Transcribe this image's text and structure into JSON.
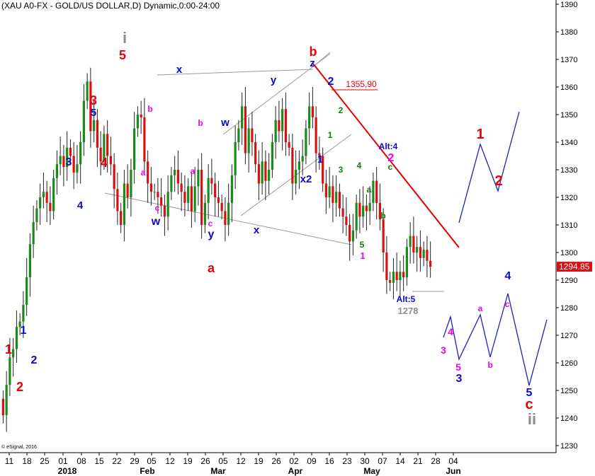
{
  "header": {
    "title": "(XAU A0-FX - GOLD/US DOLLAR,D) Dynamic,0:00-24:00"
  },
  "footer": {
    "copyright": "© eSignal, 2016"
  },
  "colors": {
    "red": "#e8000b",
    "blue": "#0a0ac8",
    "green": "#107a10",
    "magenta": "#ee00ee",
    "gray": "#8c8c8c",
    "candle_up": "#1a8a1a",
    "candle_down": "#d81010",
    "trend": "#e00000",
    "proj": "#1f1fb8"
  },
  "chart_data": {
    "type": "candlestick",
    "title": "(XAU A0-FX - GOLD/US DOLLAR,D) Dynamic,0:00-24:00",
    "ylim": [
      1226,
      1395
    ],
    "yticks": [
      1230,
      1240,
      1250,
      1260,
      1270,
      1280,
      1290,
      1300,
      1310,
      1320,
      1330,
      1340,
      1350,
      1360,
      1370,
      1380,
      1390
    ],
    "last_price": "1294.85",
    "xticks": [
      "11",
      "18",
      "25",
      "01",
      "08",
      "15",
      "22",
      "29",
      "05",
      "12",
      "19",
      "26",
      "05",
      "12",
      "19",
      "26",
      "02",
      "09",
      "16",
      "23",
      "30",
      "07",
      "14",
      "21",
      "28",
      "04"
    ],
    "xmonths": [
      "2018",
      "Feb",
      "Mar",
      "Apr",
      "May",
      "Jun"
    ],
    "closes": [
      1241,
      1252,
      1262,
      1265,
      1273,
      1275,
      1281,
      1291,
      1303,
      1311,
      1316,
      1320,
      1322,
      1318,
      1315,
      1327,
      1332,
      1335,
      1331,
      1338,
      1335,
      1329,
      1332,
      1340,
      1355,
      1362,
      1344,
      1348,
      1338,
      1333,
      1343,
      1335,
      1332,
      1323,
      1315,
      1310,
      1325,
      1320,
      1330,
      1345,
      1350,
      1349,
      1333,
      1325,
      1322,
      1322,
      1320,
      1317,
      1313,
      1322,
      1328,
      1330,
      1325,
      1322,
      1318,
      1324,
      1315,
      1324,
      1330,
      1310,
      1318,
      1327,
      1325,
      1320,
      1318,
      1315,
      1310,
      1318,
      1328,
      1340,
      1345,
      1353,
      1336,
      1345,
      1340,
      1332,
      1325,
      1333,
      1326,
      1330,
      1340,
      1348,
      1344,
      1352,
      1340,
      1338,
      1325,
      1330,
      1333,
      1335,
      1345,
      1353,
      1349,
      1336,
      1335,
      1325,
      1320,
      1324,
      1318,
      1322,
      1316,
      1313,
      1310,
      1304,
      1308,
      1318,
      1313,
      1317,
      1315,
      1318,
      1326,
      1318,
      1312,
      1300,
      1290,
      1289,
      1293,
      1290,
      1293,
      1291,
      1302,
      1306,
      1300,
      1302,
      1298,
      1301,
      1297,
      1294.85
    ],
    "annotations": {
      "prices": [
        "1355,90",
        "1278"
      ],
      "alt": [
        "Alt:4",
        "Alt:5"
      ],
      "waves": [
        {
          "t": "1",
          "c": "red"
        },
        {
          "t": "2",
          "c": "red"
        },
        {
          "t": "1",
          "c": "blue"
        },
        {
          "t": "2",
          "c": "blue"
        },
        {
          "t": "3",
          "c": "blue"
        },
        {
          "t": "4",
          "c": "blue"
        },
        {
          "t": "5",
          "c": "blue"
        },
        {
          "t": "3",
          "c": "red"
        },
        {
          "t": "4",
          "c": "red"
        },
        {
          "t": "5",
          "c": "red"
        },
        {
          "t": "i",
          "c": "gray"
        },
        {
          "t": "a",
          "c": "magenta"
        },
        {
          "t": "b",
          "c": "magenta"
        },
        {
          "t": "c",
          "c": "magenta"
        },
        {
          "t": "w",
          "c": "blue"
        },
        {
          "t": "x",
          "c": "blue"
        },
        {
          "t": "a",
          "c": "magenta"
        },
        {
          "t": "b",
          "c": "magenta"
        },
        {
          "t": "c",
          "c": "magenta"
        },
        {
          "t": "y",
          "c": "blue"
        },
        {
          "t": "a",
          "c": "red"
        },
        {
          "t": "w",
          "c": "blue"
        },
        {
          "t": "x",
          "c": "blue"
        },
        {
          "t": "y",
          "c": "blue"
        },
        {
          "t": "z",
          "c": "blue"
        },
        {
          "t": "b",
          "c": "red"
        },
        {
          "t": "x2",
          "c": "blue"
        },
        {
          "t": "1",
          "c": "blue"
        },
        {
          "t": "2",
          "c": "blue"
        },
        {
          "t": "1",
          "c": "green"
        },
        {
          "t": "2",
          "c": "green"
        },
        {
          "t": "3",
          "c": "green"
        },
        {
          "t": "4",
          "c": "green"
        },
        {
          "t": "a",
          "c": "green"
        },
        {
          "t": "b",
          "c": "green"
        },
        {
          "t": "c",
          "c": "green"
        },
        {
          "t": "5",
          "c": "green"
        },
        {
          "t": "1",
          "c": "magenta"
        },
        {
          "t": "2",
          "c": "magenta"
        },
        {
          "t": "3",
          "c": "magenta"
        },
        {
          "t": "4",
          "c": "magenta"
        },
        {
          "t": "5",
          "c": "magenta"
        },
        {
          "t": "a",
          "c": "magenta"
        },
        {
          "t": "b",
          "c": "magenta"
        },
        {
          "t": "c",
          "c": "magenta"
        },
        {
          "t": "3",
          "c": "blue"
        },
        {
          "t": "4",
          "c": "blue"
        },
        {
          "t": "5",
          "c": "blue"
        },
        {
          "t": "c",
          "c": "red"
        },
        {
          "t": "ii",
          "c": "gray"
        },
        {
          "t": "1",
          "c": "red"
        },
        {
          "t": "2",
          "c": "red"
        }
      ]
    }
  }
}
